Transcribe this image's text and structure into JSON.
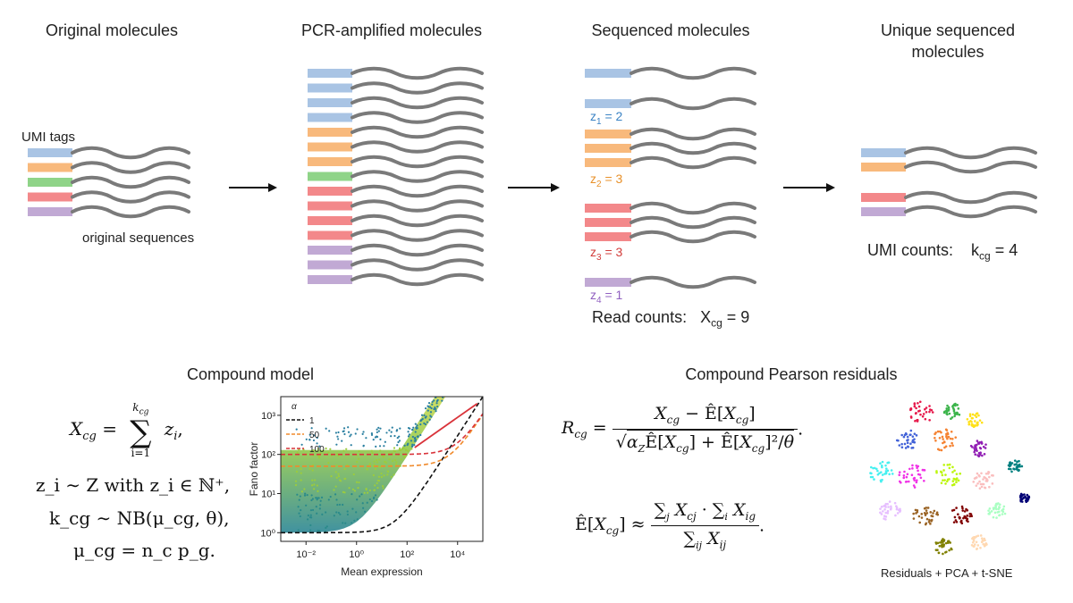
{
  "colors": {
    "blue": "#a9c4e4",
    "orange": "#f8b97c",
    "green": "#8fd488",
    "red": "#f3888a",
    "purple": "#c1a9d4",
    "wave": "#7a7a7a",
    "z_blue": "#3b83c4",
    "z_orange": "#e8912a",
    "z_red": "#d23c3a",
    "z_purple": "#9060c0"
  },
  "diagram": {
    "stage_titles": {
      "original": "Original molecules",
      "pcr": "PCR-amplified molecules",
      "sequenced": "Sequenced molecules",
      "unique": "Unique sequenced molecules"
    },
    "umi_tags_label": "UMI tags",
    "original_sequences_label": "original sequences",
    "original_tags": [
      "blue",
      "orange",
      "green",
      "red",
      "purple"
    ],
    "pcr_tags": [
      "blue",
      "blue",
      "blue",
      "blue",
      "orange",
      "orange",
      "orange",
      "green",
      "red",
      "red",
      "red",
      "red",
      "purple",
      "purple",
      "purple"
    ],
    "sequenced_groups": [
      {
        "color": "blue",
        "count": 2,
        "z_label": "z",
        "z_sub": "1",
        "z_text": " = 2"
      },
      {
        "color": "orange",
        "count": 3,
        "z_label": "z",
        "z_sub": "2",
        "z_text": " = 3"
      },
      {
        "color": "red",
        "count": 3,
        "z_label": "z",
        "z_sub": "3",
        "z_text": " = 3"
      },
      {
        "color": "purple",
        "count": 1,
        "z_label": "z",
        "z_sub": "4",
        "z_text": " = 1"
      }
    ],
    "read_counts": {
      "label": "Read counts:",
      "var": "X",
      "sub": "cg",
      "value": " = 9"
    },
    "unique_tags": [
      "blue",
      "orange",
      "red",
      "purple"
    ],
    "umi_counts": {
      "label": "UMI counts:",
      "var": "k",
      "sub": "cg",
      "value": " = 4"
    }
  },
  "compound_model": {
    "title": "Compound model",
    "equations": {
      "line1_lhs": "X",
      "line1_lhs_sub": "cg",
      "line1_sum_upper": "k",
      "line1_sum_upper_sub": "cg",
      "line1_sum_lower": "i=1",
      "line1_rhs": "z",
      "line1_rhs_sub": "i",
      "line2": "z_i ∼ Z with z_i ∈ ℕ⁺,",
      "line3": "k_cg ∼ NB(μ_cg, θ),",
      "line4": "μ_cg = n_c p_g."
    }
  },
  "chart_data": {
    "type": "scatter",
    "title": "",
    "xlabel": "Mean expression",
    "ylabel": "Fano factor",
    "xscale": "log",
    "yscale": "log",
    "xlim": [
      0.001,
      100000
    ],
    "ylim": [
      0.6,
      3000
    ],
    "x_ticks": [
      {
        "value": 0.01,
        "label": "10⁻²"
      },
      {
        "value": 1,
        "label": "10⁰"
      },
      {
        "value": 100,
        "label": "10²"
      },
      {
        "value": 10000,
        "label": "10⁴"
      }
    ],
    "y_ticks": [
      {
        "value": 1,
        "label": "10⁰"
      },
      {
        "value": 10,
        "label": "10¹"
      },
      {
        "value": 100,
        "label": "10²"
      },
      {
        "value": 1000,
        "label": "10³"
      }
    ],
    "legend": {
      "title": "α",
      "placement": "top-left",
      "entries": [
        {
          "label": "1",
          "color": "#111111",
          "alpha": 1
        },
        {
          "label": "50",
          "color": "#f08a2c",
          "alpha": 50
        },
        {
          "label": "100",
          "color": "#d9333a",
          "alpha": 100
        }
      ]
    },
    "series": [
      {
        "name": "α = 1",
        "color": "#111111",
        "fano_plateau": 1
      },
      {
        "name": "α = 50",
        "color": "#f08a2c",
        "fano_plateau": 50
      },
      {
        "name": "α = 100",
        "color": "#d9333a",
        "fano_plateau": 100
      }
    ],
    "density_band": {
      "x_range": [
        0.001,
        100000
      ],
      "description": "genes"
    },
    "upper_line_color": "#d9333a"
  },
  "residuals": {
    "title": "Compound Pearson residuals",
    "caption": "Residuals + PCA + t-SNE"
  }
}
